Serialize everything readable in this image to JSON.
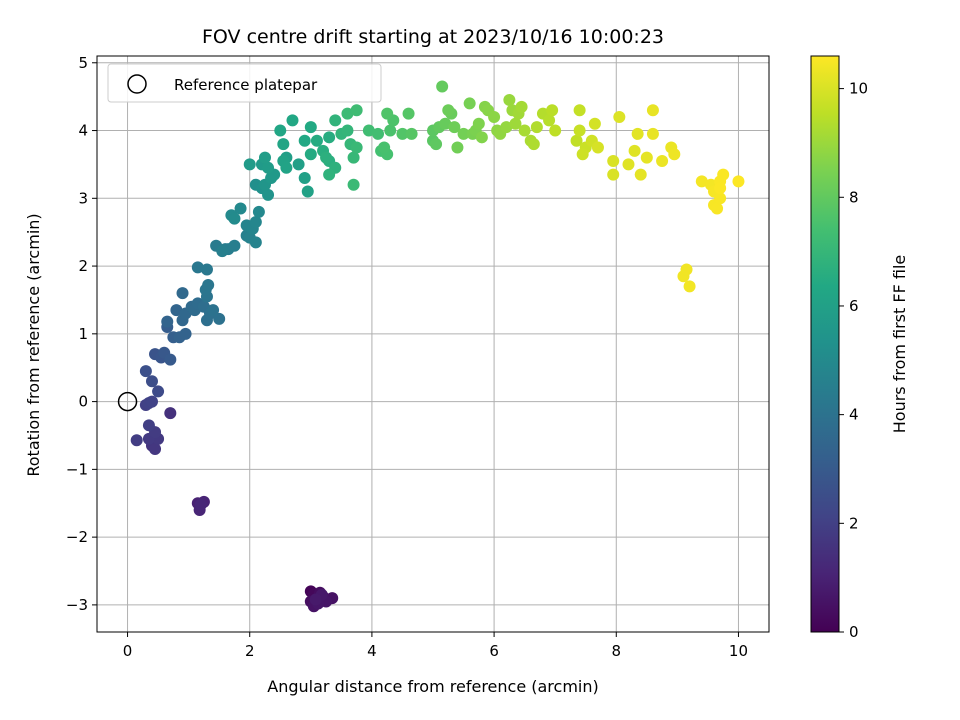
{
  "chart_data": {
    "type": "scatter",
    "title": "FOV centre drift starting at 2023/10/16 10:00:23",
    "xlabel": "Angular distance from reference (arcmin)",
    "ylabel": "Rotation from reference (arcmin)",
    "xlim": [
      -0.5,
      10.5
    ],
    "ylim": [
      -3.4,
      5.1
    ],
    "x_ticks": [
      0,
      2,
      4,
      6,
      8,
      10
    ],
    "y_ticks": [
      -3,
      -2,
      -1,
      0,
      1,
      2,
      3,
      4,
      5
    ],
    "grid": true,
    "legend": {
      "position": "top-left",
      "entries": [
        "Reference platepar"
      ]
    },
    "reference_point": {
      "name": "Reference platepar",
      "x": 0,
      "y": 0,
      "marker": "hollow-circle"
    },
    "colorbar": {
      "label": "Hours from first FF file",
      "colormap": "viridis",
      "range": [
        0,
        10.6
      ],
      "ticks": [
        0,
        2,
        4,
        6,
        8,
        10
      ]
    },
    "points": [
      [
        3.0,
        -2.8,
        0.1
      ],
      [
        3.05,
        -2.85,
        0.2
      ],
      [
        3.1,
        -2.9,
        0.3
      ],
      [
        3.15,
        -2.82,
        0.35
      ],
      [
        3.0,
        -2.95,
        0.4
      ],
      [
        3.2,
        -2.88,
        0.45
      ],
      [
        3.35,
        -2.9,
        0.5
      ],
      [
        3.05,
        -3.02,
        0.55
      ],
      [
        3.25,
        -2.95,
        0.6
      ],
      [
        3.12,
        -2.98,
        0.65
      ],
      [
        3.18,
        -2.85,
        0.7
      ],
      [
        3.08,
        -2.92,
        0.75
      ],
      [
        1.15,
        -1.5,
        1.0
      ],
      [
        1.25,
        -1.48,
        1.05
      ],
      [
        1.18,
        -1.6,
        1.1
      ],
      [
        1.2,
        -1.52,
        1.15
      ],
      [
        0.7,
        -0.17,
        1.5
      ],
      [
        0.4,
        -0.65,
        1.6
      ],
      [
        0.45,
        -0.7,
        1.7
      ],
      [
        0.5,
        -0.55,
        1.75
      ],
      [
        0.35,
        -0.55,
        1.8
      ],
      [
        0.45,
        -0.45,
        1.85
      ],
      [
        0.15,
        -0.57,
        1.9
      ],
      [
        0.35,
        -0.35,
        1.95
      ],
      [
        0.3,
        -0.05,
        2.0
      ],
      [
        0.35,
        -0.02,
        2.05
      ],
      [
        0.4,
        0.0,
        2.1
      ],
      [
        0.5,
        0.15,
        2.4
      ],
      [
        0.4,
        0.3,
        2.5
      ],
      [
        0.3,
        0.45,
        2.6
      ],
      [
        0.45,
        0.7,
        2.7
      ],
      [
        0.55,
        0.65,
        2.8
      ],
      [
        0.6,
        0.72,
        2.9
      ],
      [
        0.7,
        0.62,
        3.0
      ],
      [
        0.65,
        1.1,
        3.1
      ],
      [
        0.75,
        0.95,
        3.2
      ],
      [
        0.85,
        0.95,
        3.3
      ],
      [
        0.95,
        1.0,
        3.35
      ],
      [
        0.65,
        1.18,
        3.4
      ],
      [
        0.8,
        1.35,
        3.45
      ],
      [
        0.9,
        1.2,
        3.5
      ],
      [
        0.95,
        1.3,
        3.55
      ],
      [
        0.9,
        1.6,
        3.6
      ],
      [
        1.05,
        1.4,
        3.65
      ],
      [
        1.1,
        1.35,
        3.7
      ],
      [
        1.15,
        1.45,
        3.75
      ],
      [
        1.25,
        1.4,
        3.8
      ],
      [
        1.3,
        1.2,
        3.85
      ],
      [
        1.35,
        1.3,
        3.9
      ],
      [
        1.5,
        1.22,
        3.95
      ],
      [
        1.4,
        1.35,
        4.0
      ],
      [
        1.3,
        1.55,
        4.05
      ],
      [
        1.28,
        1.65,
        4.1
      ],
      [
        1.32,
        1.72,
        4.15
      ],
      [
        1.15,
        1.98,
        4.2
      ],
      [
        1.3,
        1.95,
        4.25
      ],
      [
        1.45,
        2.3,
        4.35
      ],
      [
        1.6,
        2.25,
        4.4
      ],
      [
        1.65,
        2.25,
        4.45
      ],
      [
        1.75,
        2.3,
        4.5
      ],
      [
        1.55,
        2.22,
        4.55
      ],
      [
        1.95,
        2.45,
        4.6
      ],
      [
        2.0,
        2.42,
        4.65
      ],
      [
        2.1,
        2.35,
        4.7
      ],
      [
        1.95,
        2.6,
        4.75
      ],
      [
        2.05,
        2.55,
        4.8
      ],
      [
        2.1,
        2.65,
        4.85
      ],
      [
        2.15,
        2.8,
        4.9
      ],
      [
        1.85,
        2.85,
        4.95
      ],
      [
        1.7,
        2.75,
        5.0
      ],
      [
        1.75,
        2.7,
        5.05
      ],
      [
        2.1,
        3.2,
        5.2
      ],
      [
        2.2,
        3.15,
        5.3
      ],
      [
        2.3,
        3.05,
        5.4
      ],
      [
        2.25,
        3.2,
        5.5
      ],
      [
        2.35,
        3.3,
        5.6
      ],
      [
        2.4,
        3.35,
        5.65
      ],
      [
        2.2,
        3.5,
        5.7
      ],
      [
        2.0,
        3.5,
        5.75
      ],
      [
        2.3,
        3.45,
        5.8
      ],
      [
        2.25,
        3.6,
        5.85
      ],
      [
        2.6,
        3.6,
        5.9
      ],
      [
        2.8,
        3.5,
        5.95
      ],
      [
        2.9,
        3.3,
        6.0
      ],
      [
        2.95,
        3.1,
        6.05
      ],
      [
        2.55,
        3.55,
        6.1
      ],
      [
        2.6,
        3.45,
        6.15
      ],
      [
        2.55,
        3.8,
        6.2
      ],
      [
        2.5,
        4.0,
        6.25
      ],
      [
        2.7,
        4.15,
        6.3
      ],
      [
        2.9,
        3.85,
        6.35
      ],
      [
        3.0,
        4.05,
        6.4
      ],
      [
        3.0,
        3.65,
        6.45
      ],
      [
        3.1,
        3.85,
        6.5
      ],
      [
        3.3,
        3.9,
        6.55
      ],
      [
        3.2,
        3.7,
        6.6
      ],
      [
        3.3,
        3.55,
        6.65
      ],
      [
        3.25,
        3.6,
        6.7
      ],
      [
        3.4,
        3.45,
        6.75
      ],
      [
        3.3,
        3.35,
        6.8
      ],
      [
        3.4,
        4.15,
        6.85
      ],
      [
        3.5,
        3.95,
        6.9
      ],
      [
        3.6,
        4.0,
        6.95
      ],
      [
        3.65,
        3.8,
        7.0
      ],
      [
        3.7,
        3.6,
        7.05
      ],
      [
        3.75,
        3.75,
        7.1
      ],
      [
        3.7,
        3.2,
        7.15
      ],
      [
        3.6,
        4.25,
        7.2
      ],
      [
        3.75,
        4.3,
        7.25
      ],
      [
        3.95,
        4.0,
        7.3
      ],
      [
        4.1,
        3.95,
        7.35
      ],
      [
        4.15,
        3.7,
        7.4
      ],
      [
        4.25,
        3.65,
        7.45
      ],
      [
        4.2,
        3.75,
        7.5
      ],
      [
        4.3,
        4.0,
        7.55
      ],
      [
        4.35,
        4.15,
        7.6
      ],
      [
        4.25,
        4.25,
        7.65
      ],
      [
        4.5,
        3.95,
        7.7
      ],
      [
        4.6,
        4.25,
        7.75
      ],
      [
        4.65,
        3.95,
        7.8
      ],
      [
        5.0,
        3.85,
        7.85
      ],
      [
        5.0,
        4.0,
        7.9
      ],
      [
        5.05,
        3.8,
        7.95
      ],
      [
        5.1,
        4.05,
        8.0
      ],
      [
        5.15,
        4.65,
        8.05
      ],
      [
        5.2,
        4.1,
        8.1
      ],
      [
        5.3,
        4.25,
        8.15
      ],
      [
        5.25,
        4.3,
        8.2
      ],
      [
        5.35,
        4.05,
        8.25
      ],
      [
        5.4,
        3.75,
        8.3
      ],
      [
        5.5,
        3.95,
        8.35
      ],
      [
        5.6,
        4.4,
        8.4
      ],
      [
        5.65,
        3.95,
        8.45
      ],
      [
        5.7,
        4.0,
        8.5
      ],
      [
        5.75,
        4.1,
        8.55
      ],
      [
        5.8,
        3.9,
        8.6
      ],
      [
        5.85,
        4.35,
        8.65
      ],
      [
        5.9,
        4.3,
        8.7
      ],
      [
        6.0,
        4.2,
        8.75
      ],
      [
        6.05,
        4.0,
        8.8
      ],
      [
        6.1,
        3.95,
        8.85
      ],
      [
        6.2,
        4.05,
        8.9
      ],
      [
        6.25,
        4.45,
        8.95
      ],
      [
        6.3,
        4.3,
        9.0
      ],
      [
        6.35,
        4.1,
        9.05
      ],
      [
        6.4,
        4.25,
        9.1
      ],
      [
        6.45,
        4.35,
        9.15
      ],
      [
        6.5,
        4.0,
        9.2
      ],
      [
        6.6,
        3.85,
        9.25
      ],
      [
        6.65,
        3.8,
        9.3
      ],
      [
        6.7,
        4.05,
        9.35
      ],
      [
        6.8,
        4.25,
        9.4
      ],
      [
        6.9,
        4.15,
        9.45
      ],
      [
        6.95,
        4.3,
        9.5
      ],
      [
        7.0,
        4.0,
        9.55
      ],
      [
        7.35,
        3.85,
        9.6
      ],
      [
        7.4,
        4.3,
        9.65
      ],
      [
        7.4,
        4.0,
        9.7
      ],
      [
        7.5,
        3.75,
        9.75
      ],
      [
        7.45,
        3.65,
        9.8
      ],
      [
        7.6,
        3.85,
        9.85
      ],
      [
        7.65,
        4.1,
        9.9
      ],
      [
        7.7,
        3.75,
        9.95
      ],
      [
        7.95,
        3.35,
        10.0
      ],
      [
        7.95,
        3.55,
        10.0
      ],
      [
        8.05,
        4.2,
        10.05
      ],
      [
        8.2,
        3.5,
        10.1
      ],
      [
        8.3,
        3.7,
        10.1
      ],
      [
        8.35,
        3.95,
        10.15
      ],
      [
        8.4,
        3.35,
        10.2
      ],
      [
        8.5,
        3.6,
        10.2
      ],
      [
        8.6,
        3.95,
        10.25
      ],
      [
        8.6,
        4.3,
        10.25
      ],
      [
        8.75,
        3.55,
        10.3
      ],
      [
        8.9,
        3.75,
        10.3
      ],
      [
        8.95,
        3.65,
        10.35
      ],
      [
        9.1,
        1.85,
        10.4
      ],
      [
        9.15,
        1.95,
        10.4
      ],
      [
        9.2,
        1.7,
        10.42
      ],
      [
        9.4,
        3.25,
        10.45
      ],
      [
        9.55,
        3.2,
        10.45
      ],
      [
        9.6,
        3.1,
        10.5
      ],
      [
        9.6,
        2.9,
        10.5
      ],
      [
        9.65,
        2.85,
        10.52
      ],
      [
        9.7,
        3.0,
        10.52
      ],
      [
        9.7,
        3.25,
        10.55
      ],
      [
        9.75,
        3.35,
        10.55
      ],
      [
        9.7,
        3.15,
        10.56
      ],
      [
        10.0,
        3.25,
        10.58
      ]
    ]
  }
}
